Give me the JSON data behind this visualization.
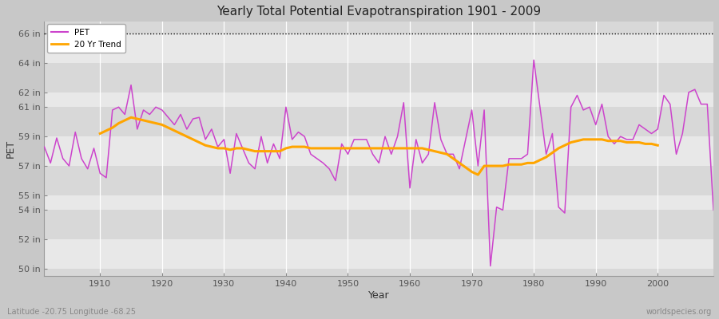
{
  "title": "Yearly Total Potential Evapotranspiration 1901 - 2009",
  "xlabel": "Year",
  "ylabel": "PET",
  "lat_lon_label": "Latitude -20.75 Longitude -68.25",
  "watermark": "worldspecies.org",
  "pet_color": "#CC44CC",
  "trend_color": "#FFA500",
  "fig_bg_color": "#C8C8C8",
  "plot_bg_color": "#D8D8D8",
  "ylim": [
    49.5,
    66.8
  ],
  "yticks": [
    50,
    52,
    54,
    55,
    57,
    59,
    61,
    62,
    64,
    66
  ],
  "ytick_labels": [
    "50 in",
    "52 in",
    "54 in",
    "55 in",
    "57 in",
    "59 in",
    "61 in",
    "62 in",
    "64 in",
    "66 in"
  ],
  "xlim": [
    1901,
    2009
  ],
  "xticks": [
    1910,
    1920,
    1930,
    1940,
    1950,
    1960,
    1970,
    1980,
    1990,
    2000
  ],
  "years": [
    1901,
    1902,
    1903,
    1904,
    1905,
    1906,
    1907,
    1908,
    1909,
    1910,
    1911,
    1912,
    1913,
    1914,
    1915,
    1916,
    1917,
    1918,
    1919,
    1920,
    1921,
    1922,
    1923,
    1924,
    1925,
    1926,
    1927,
    1928,
    1929,
    1930,
    1931,
    1932,
    1933,
    1934,
    1935,
    1936,
    1937,
    1938,
    1939,
    1940,
    1941,
    1942,
    1943,
    1944,
    1945,
    1946,
    1947,
    1948,
    1949,
    1950,
    1951,
    1952,
    1953,
    1954,
    1955,
    1956,
    1957,
    1958,
    1959,
    1960,
    1961,
    1962,
    1963,
    1964,
    1965,
    1966,
    1967,
    1968,
    1969,
    1970,
    1971,
    1972,
    1973,
    1974,
    1975,
    1976,
    1977,
    1978,
    1979,
    1980,
    1981,
    1982,
    1983,
    1984,
    1985,
    1986,
    1987,
    1988,
    1989,
    1990,
    1991,
    1992,
    1993,
    1994,
    1995,
    1996,
    1997,
    1998,
    1999,
    2000,
    2001,
    2002,
    2003,
    2004,
    2005,
    2006,
    2007,
    2008,
    2009
  ],
  "pet_values": [
    58.3,
    57.2,
    58.9,
    57.5,
    57.0,
    59.3,
    57.5,
    56.8,
    58.2,
    56.5,
    56.2,
    60.8,
    61.0,
    60.5,
    62.5,
    59.5,
    60.8,
    60.5,
    61.0,
    60.8,
    60.3,
    59.8,
    60.5,
    59.5,
    60.2,
    60.3,
    58.8,
    59.5,
    58.3,
    58.8,
    56.5,
    59.2,
    58.2,
    57.2,
    56.8,
    59.0,
    57.2,
    58.5,
    57.5,
    61.0,
    58.8,
    59.3,
    59.0,
    57.8,
    57.5,
    57.2,
    56.8,
    56.0,
    58.5,
    57.8,
    58.8,
    58.8,
    58.8,
    57.8,
    57.2,
    59.0,
    57.8,
    59.0,
    61.3,
    55.5,
    58.8,
    57.2,
    57.8,
    61.3,
    58.8,
    57.8,
    57.8,
    56.8,
    58.8,
    60.8,
    57.0,
    60.8,
    50.2,
    54.2,
    54.0,
    57.5,
    57.5,
    57.5,
    57.8,
    64.2,
    61.0,
    57.8,
    59.2,
    54.2,
    53.8,
    61.0,
    61.8,
    60.8,
    61.0,
    59.8,
    61.2,
    59.0,
    58.5,
    59.0,
    58.8,
    58.8,
    59.8,
    59.5,
    59.2,
    59.5,
    61.8,
    61.2,
    57.8,
    59.2,
    62.0,
    62.2,
    61.2,
    61.2,
    54.0
  ],
  "trend_values": [
    null,
    null,
    null,
    null,
    null,
    null,
    null,
    null,
    null,
    59.2,
    59.4,
    59.6,
    59.9,
    60.1,
    60.3,
    60.2,
    60.1,
    60.0,
    59.9,
    59.8,
    59.6,
    59.4,
    59.2,
    59.0,
    58.8,
    58.6,
    58.4,
    58.3,
    58.2,
    58.2,
    58.1,
    58.2,
    58.2,
    58.1,
    58.0,
    58.0,
    58.0,
    58.0,
    58.0,
    58.2,
    58.3,
    58.3,
    58.3,
    58.2,
    58.2,
    58.2,
    58.2,
    58.2,
    58.2,
    58.2,
    58.2,
    58.2,
    58.2,
    58.2,
    58.2,
    58.2,
    58.2,
    58.2,
    58.2,
    58.2,
    58.2,
    58.2,
    58.1,
    58.0,
    57.9,
    57.8,
    57.5,
    57.2,
    56.9,
    56.6,
    56.4,
    57.0,
    57.0,
    57.0,
    57.0,
    57.1,
    57.1,
    57.1,
    57.2,
    57.2,
    57.4,
    57.6,
    57.9,
    58.2,
    58.4,
    58.6,
    58.7,
    58.8,
    58.8,
    58.8,
    58.8,
    58.7,
    58.7,
    58.7,
    58.6,
    58.6,
    58.6,
    58.5,
    58.5,
    58.4,
    null,
    null,
    null,
    null,
    null,
    null,
    null,
    null,
    null
  ]
}
